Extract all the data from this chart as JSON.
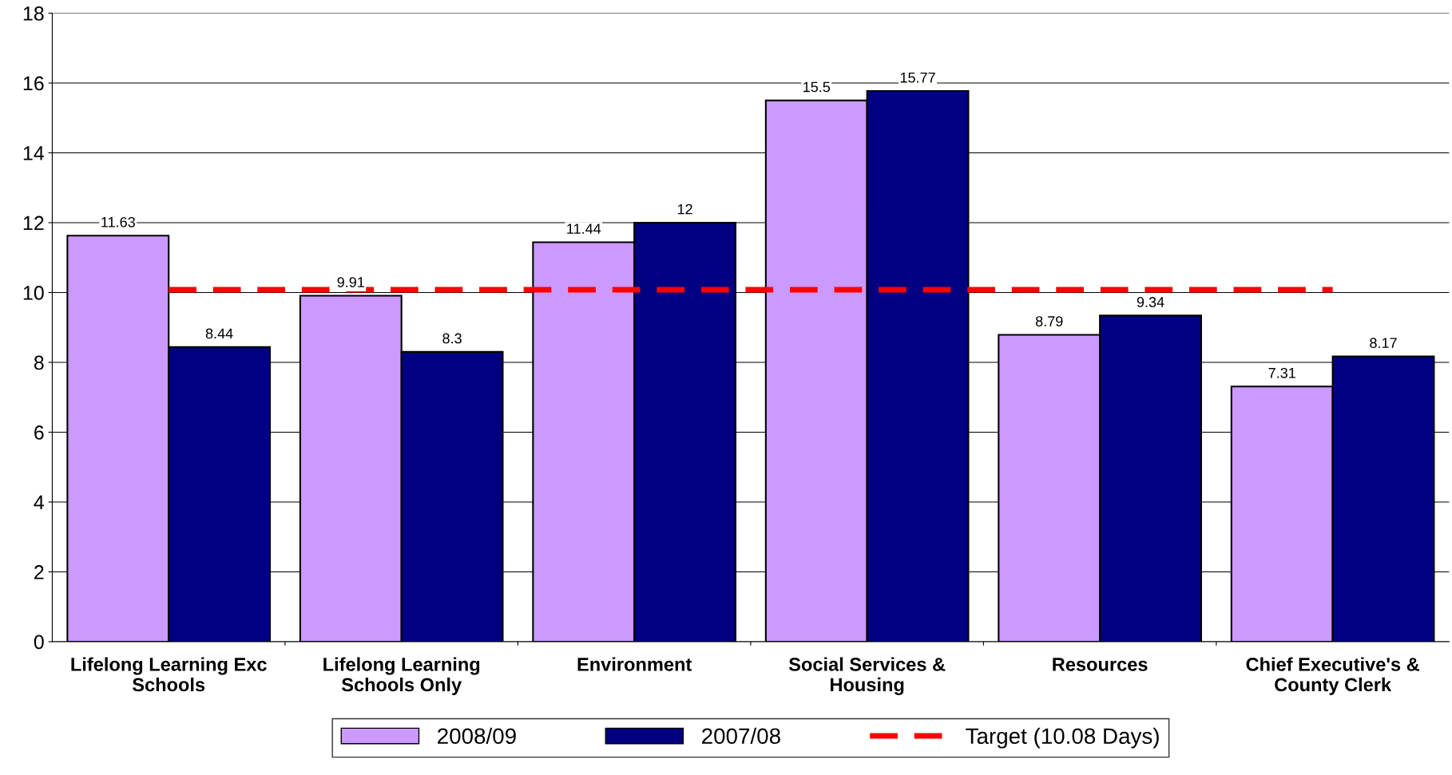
{
  "chart_data": {
    "type": "bar",
    "categories": [
      "Lifelong Learning Exc\nSchools",
      "Lifelong Learning\nSchools Only",
      "Environment",
      "Social Services &\nHousing",
      "Resources",
      "Chief Executive's &\nCounty Clerk"
    ],
    "series": [
      {
        "name": "2008/09",
        "color": "#cc99ff",
        "values": [
          11.63,
          9.91,
          11.44,
          15.5,
          8.79,
          7.31
        ],
        "value_labels": [
          "11.63",
          "9.91",
          "11.44",
          "15.5",
          "8.79",
          "7.31"
        ]
      },
      {
        "name": "2007/08",
        "color": "#000080",
        "values": [
          8.44,
          8.3,
          12,
          15.77,
          9.34,
          8.17
        ],
        "value_labels": [
          "8.44",
          "8.3",
          "12",
          "15.77",
          "9.34",
          "8.17"
        ]
      },
      {
        "name": "Target (10.08 Days)",
        "type": "line",
        "color": "#ff0000",
        "line_style": "dashed",
        "values": [
          10.08,
          10.08,
          10.08,
          10.08,
          10.08,
          10.08
        ]
      }
    ],
    "ylim": [
      0,
      18
    ],
    "yticks": [
      0,
      2,
      4,
      6,
      8,
      10,
      12,
      14,
      16,
      18
    ],
    "grid": "y",
    "legend": "bottom"
  }
}
